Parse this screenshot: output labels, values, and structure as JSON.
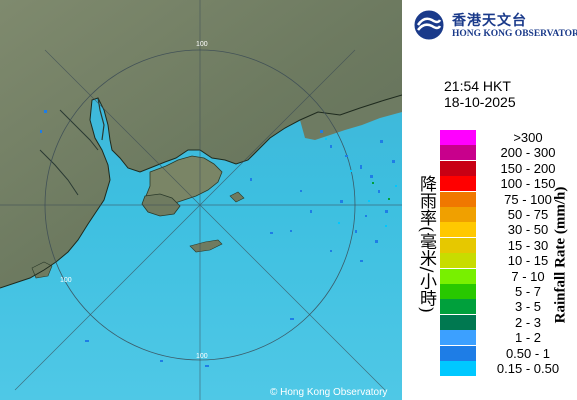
{
  "header": {
    "org_name_cn": "香港天文台",
    "org_name_en": "HONG KONG OBSERVATORY",
    "time": "21:54 HKT",
    "date": "18-10-2025"
  },
  "legend": {
    "title_cn": "降雨率(毫米/小時)",
    "title_en": "Rainfall Rate (mm/h)",
    "items": [
      {
        "label": ">300",
        "color": "#ff00ff"
      },
      {
        "label": "200 - 300",
        "color": "#c8008c"
      },
      {
        "label": "150 - 200",
        "color": "#c80014"
      },
      {
        "label": "100 - 150",
        "color": "#ff0000"
      },
      {
        "label": "75 - 100",
        "color": "#f07800"
      },
      {
        "label": "50 - 75",
        "color": "#f0a000"
      },
      {
        "label": "30 - 50",
        "color": "#ffc800"
      },
      {
        "label": "15 - 30",
        "color": "#e6c800"
      },
      {
        "label": "10 - 15",
        "color": "#c8dc00"
      },
      {
        "label": "7 - 10",
        "color": "#78f000"
      },
      {
        "label": "5 - 7",
        "color": "#28c800"
      },
      {
        "label": "3 - 5",
        "color": "#00a03c"
      },
      {
        "label": "2 - 3",
        "color": "#007850"
      },
      {
        "label": "1 - 2",
        "color": "#3ca0ff"
      },
      {
        "label": "0.50 - 1",
        "color": "#1e7de6"
      },
      {
        "label": "0.15 - 0.50",
        "color": "#00c8ff"
      }
    ]
  },
  "map": {
    "range_rings": [
      "100",
      "100",
      "100"
    ],
    "credit": "© Hong Kong Observatory"
  }
}
